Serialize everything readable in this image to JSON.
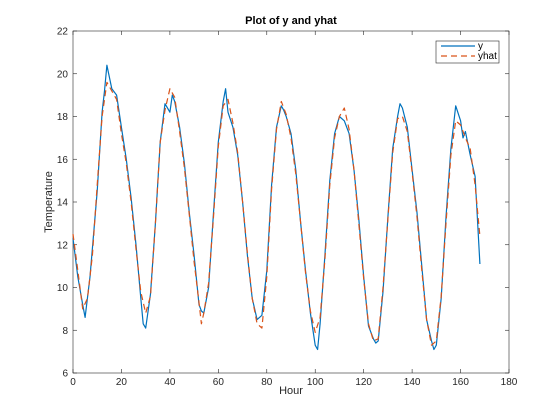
{
  "chart_data": {
    "type": "line",
    "title": "Plot of y and yhat",
    "xlabel": "Hour",
    "ylabel": "Temperature",
    "xlim": [
      0,
      180
    ],
    "ylim": [
      6,
      22
    ],
    "xticks": [
      "0",
      "20",
      "40",
      "60",
      "80",
      "100",
      "120",
      "140",
      "160",
      "180"
    ],
    "yticks": [
      "6",
      "8",
      "10",
      "12",
      "14",
      "16",
      "18",
      "20",
      "22"
    ],
    "grid": false,
    "legend_position": "top-right",
    "series": [
      {
        "name": "y",
        "color": "#0072BD",
        "style": "solid",
        "x": [
          0,
          2,
          4,
          5,
          7,
          10,
          12,
          13,
          14,
          16,
          18,
          20,
          22,
          24,
          26,
          28,
          29,
          30,
          32,
          34,
          36,
          38,
          40,
          41,
          42,
          44,
          46,
          48,
          50,
          52,
          53,
          54,
          56,
          58,
          60,
          62,
          63,
          64,
          66,
          68,
          70,
          72,
          74,
          76,
          78,
          80,
          82,
          84,
          86,
          87,
          88,
          90,
          92,
          94,
          96,
          98,
          100,
          101,
          102,
          104,
          106,
          108,
          110,
          112,
          114,
          116,
          118,
          120,
          122,
          124,
          125,
          126,
          128,
          130,
          132,
          134,
          135,
          136,
          138,
          140,
          142,
          144,
          146,
          148,
          149,
          150,
          152,
          154,
          156,
          158,
          160,
          161,
          162,
          164,
          166,
          168
        ],
        "values": [
          12.3,
          10.5,
          9.2,
          8.6,
          10.5,
          14.5,
          18.2,
          19.2,
          20.4,
          19.3,
          19.0,
          17.5,
          16.0,
          14.2,
          12.0,
          9.5,
          8.3,
          8.1,
          9.7,
          13.0,
          16.8,
          18.6,
          18.2,
          19.0,
          18.7,
          17.5,
          15.8,
          13.5,
          11.5,
          9.2,
          8.9,
          8.8,
          10.0,
          13.5,
          16.8,
          18.7,
          19.3,
          18.2,
          17.5,
          16.2,
          14.0,
          11.5,
          9.5,
          8.5,
          8.7,
          10.8,
          14.8,
          17.5,
          18.5,
          18.3,
          18.0,
          17.2,
          15.5,
          13.0,
          10.8,
          8.8,
          7.3,
          7.1,
          8.3,
          11.5,
          15.0,
          17.2,
          18.0,
          17.8,
          17.2,
          15.5,
          13.2,
          10.5,
          8.2,
          7.6,
          7.4,
          7.5,
          9.8,
          13.3,
          16.5,
          18.0,
          18.6,
          18.4,
          17.5,
          15.5,
          13.5,
          11.0,
          8.5,
          7.5,
          7.1,
          7.3,
          9.5,
          13.3,
          16.5,
          18.5,
          17.8,
          17.0,
          17.3,
          16.2,
          15.2,
          11.1
        ]
      },
      {
        "name": "yhat",
        "color": "#D95319",
        "style": "dashed",
        "x": [
          0,
          2,
          4,
          6,
          8,
          10,
          12,
          14,
          16,
          18,
          20,
          22,
          24,
          26,
          28,
          30,
          32,
          34,
          36,
          38,
          40,
          42,
          44,
          46,
          48,
          50,
          52,
          53,
          54,
          56,
          58,
          60,
          62,
          64,
          66,
          68,
          70,
          72,
          74,
          76,
          78,
          80,
          82,
          84,
          86,
          88,
          90,
          92,
          94,
          96,
          98,
          100,
          102,
          104,
          106,
          108,
          110,
          112,
          114,
          116,
          118,
          120,
          122,
          124,
          126,
          128,
          130,
          132,
          134,
          136,
          138,
          140,
          142,
          144,
          146,
          148,
          150,
          152,
          154,
          156,
          158,
          160,
          162,
          164,
          166,
          168
        ],
        "values": [
          12.5,
          10.8,
          9.0,
          9.5,
          11.5,
          14.8,
          18.0,
          19.6,
          19.2,
          18.8,
          17.2,
          15.8,
          14.0,
          11.8,
          9.8,
          8.8,
          9.6,
          13.0,
          16.8,
          18.3,
          19.3,
          18.9,
          17.3,
          15.6,
          13.4,
          11.2,
          9.3,
          8.3,
          8.8,
          10.2,
          13.3,
          16.6,
          18.5,
          18.8,
          17.7,
          16.3,
          14.0,
          11.6,
          9.5,
          8.3,
          8.1,
          10.5,
          14.6,
          17.4,
          18.7,
          18.1,
          17.0,
          15.3,
          13.0,
          10.7,
          8.9,
          7.9,
          8.6,
          11.3,
          14.8,
          17.0,
          18.0,
          18.4,
          17.4,
          15.5,
          13.0,
          10.4,
          8.3,
          7.5,
          7.6,
          10.0,
          13.2,
          16.3,
          17.9,
          18.0,
          17.3,
          15.4,
          13.3,
          10.8,
          8.5,
          7.3,
          7.5,
          9.6,
          13.0,
          16.2,
          17.8,
          17.6,
          17.0,
          16.5,
          14.8,
          12.4
        ]
      }
    ]
  }
}
